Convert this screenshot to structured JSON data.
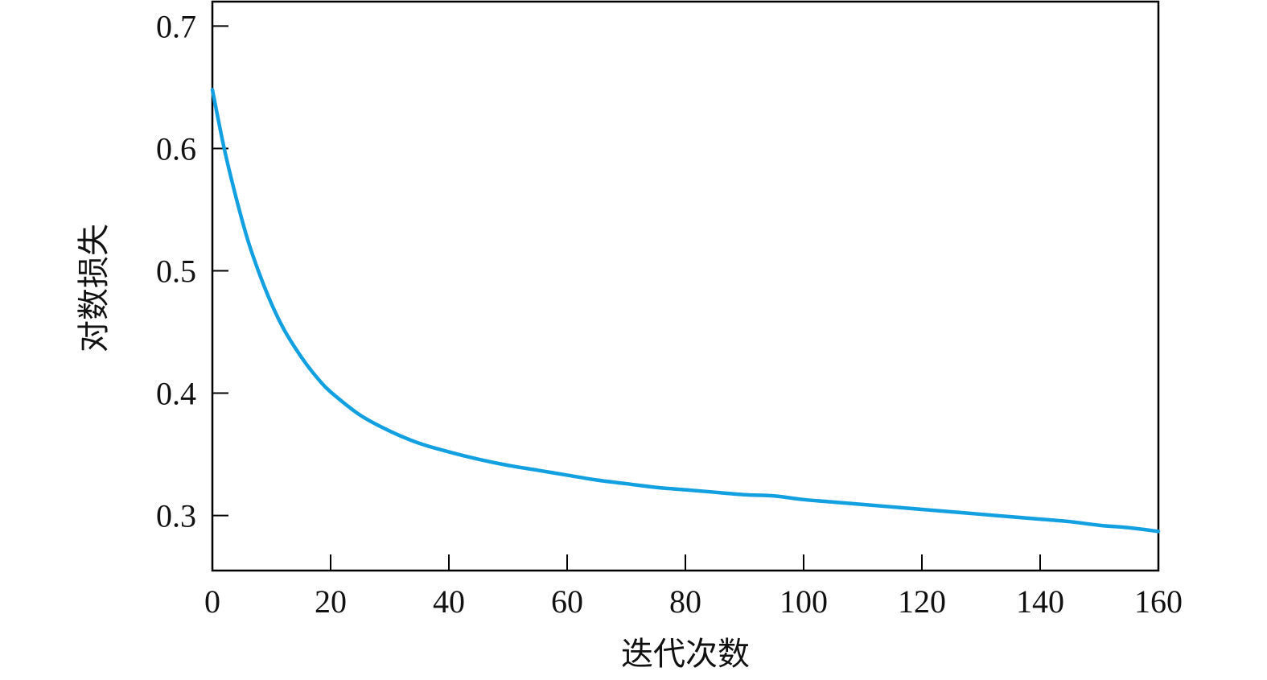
{
  "chart_data": {
    "type": "line",
    "title": "",
    "xlabel": "迭代次数",
    "ylabel": "对数损失",
    "xlim": [
      0,
      160
    ],
    "ylim": [
      0.255,
      0.72
    ],
    "xticks": [
      0,
      20,
      40,
      60,
      80,
      100,
      120,
      140,
      160
    ],
    "xtick_labels": [
      "0",
      "20",
      "40",
      "60",
      "80",
      "100",
      "120",
      "140",
      "160"
    ],
    "yticks": [
      0.3,
      0.4,
      0.5,
      0.6,
      0.7
    ],
    "ytick_labels": [
      "0.3",
      "0.4",
      "0.5",
      "0.6",
      "0.7"
    ],
    "grid": false,
    "legend": "none",
    "line_color": "#12a0e0",
    "series": [
      {
        "x": [
          0,
          2,
          4,
          6,
          8,
          10,
          12,
          14,
          16,
          18,
          20,
          25,
          30,
          35,
          40,
          45,
          50,
          55,
          60,
          65,
          70,
          75,
          80,
          85,
          90,
          95,
          100,
          105,
          110,
          115,
          120,
          125,
          130,
          135,
          140,
          145,
          150,
          155,
          160
        ],
        "y": [
          0.648,
          0.6,
          0.56,
          0.525,
          0.497,
          0.473,
          0.453,
          0.437,
          0.423,
          0.411,
          0.401,
          0.382,
          0.369,
          0.359,
          0.352,
          0.346,
          0.341,
          0.337,
          0.333,
          0.329,
          0.326,
          0.323,
          0.321,
          0.319,
          0.317,
          0.316,
          0.313,
          0.311,
          0.309,
          0.307,
          0.305,
          0.303,
          0.301,
          0.299,
          0.297,
          0.295,
          0.292,
          0.29,
          0.287
        ]
      }
    ]
  }
}
